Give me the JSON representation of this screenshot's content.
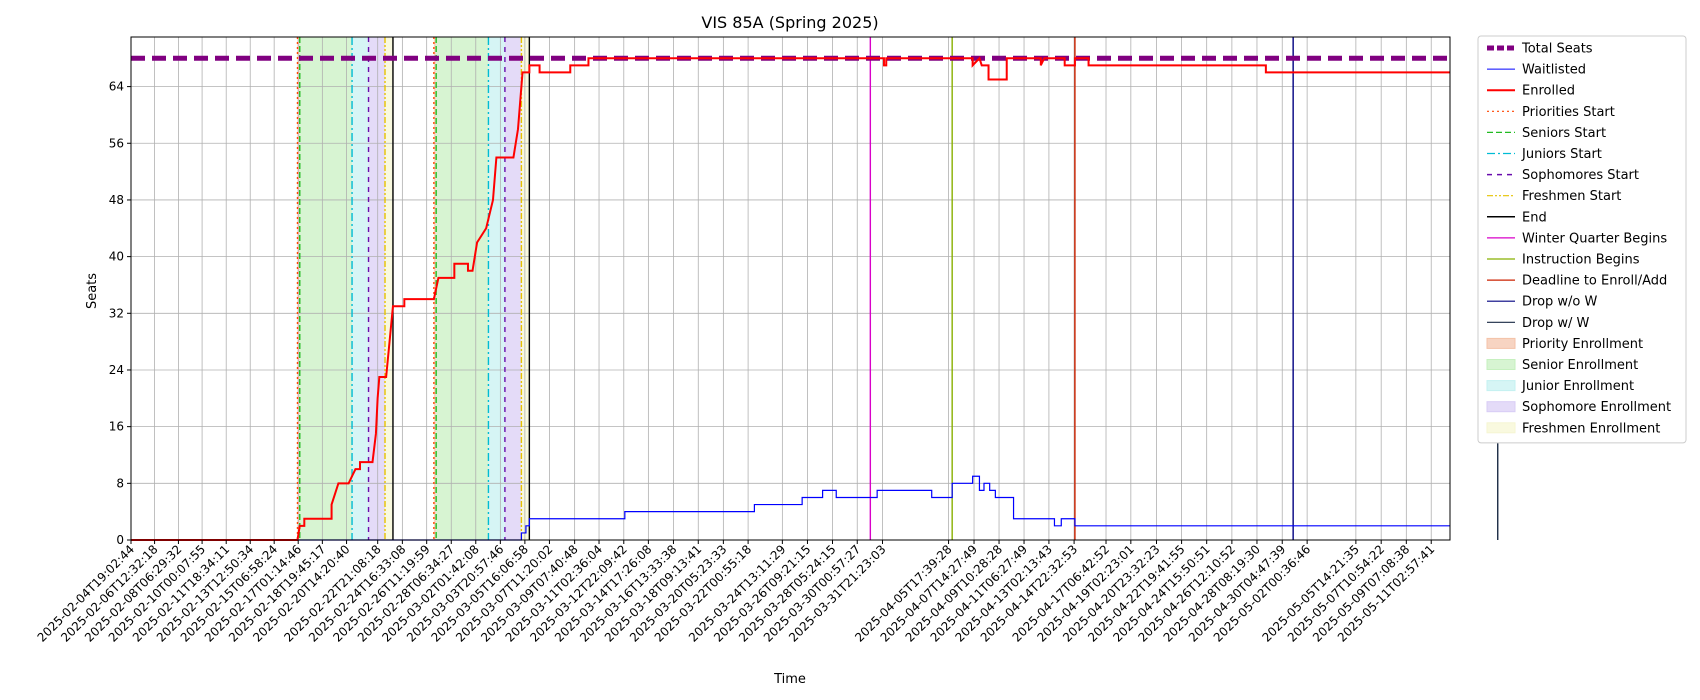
{
  "chart_data": {
    "type": "line",
    "title": "VIS 85A (Spring 2025)",
    "xlabel": "Time",
    "ylabel": "Seats",
    "grid": true,
    "legend_position": "outside-right",
    "x_range": [
      "2025-02-04T19:02:44",
      "2025-05-12T12:00:00"
    ],
    "ylim": [
      0,
      71
    ],
    "y_ticks": [
      0,
      8,
      16,
      24,
      32,
      40,
      48,
      56,
      64
    ],
    "x_ticks": [
      "2025-02-04T19:02:44",
      "2025-02-06T12:32:18",
      "2025-02-08T06:29:32",
      "2025-02-10T00:07:55",
      "2025-02-11T18:34:11",
      "2025-02-13T12:50:34",
      "2025-02-15T06:58:24",
      "2025-02-17T01:14:46",
      "2025-02-18T19:45:17",
      "2025-02-20T14:20:40",
      "2025-02-22T21:08:18",
      "2025-02-24T16:33:08",
      "2025-02-26T11:19:59",
      "2025-02-28T06:34:27",
      "2025-03-02T01:42:08",
      "2025-03-03T20:57:46",
      "2025-03-05T16:06:58",
      "2025-03-07T11:20:02",
      "2025-03-09T07:40:48",
      "2025-03-11T02:36:04",
      "2025-03-12T22:09:42",
      "2025-03-14T17:26:08",
      "2025-03-16T13:33:38",
      "2025-03-18T09:13:41",
      "2025-03-20T05:23:33",
      "2025-03-22T00:55:18",
      "2025-03-24T13:11:29",
      "2025-03-26T09:21:15",
      "2025-03-28T05:24:15",
      "2025-03-30T00:57:27",
      "2025-03-31T21:23:03",
      "2025-04-05T17:39:28",
      "2025-04-07T14:27:49",
      "2025-04-09T10:28:28",
      "2025-04-11T06:27:49",
      "2025-04-13T02:13:43",
      "2025-04-14T22:32:53",
      "2025-04-17T06:42:52",
      "2025-04-19T02:23:01",
      "2025-04-20T23:32:23",
      "2025-04-22T19:41:55",
      "2025-04-24T15:50:51",
      "2025-04-26T12:10:52",
      "2025-04-28T08:19:30",
      "2025-04-30T04:47:39",
      "2025-05-02T00:36:46",
      "2025-05-05T14:21:35",
      "2025-05-07T10:54:22",
      "2025-05-09T07:08:38",
      "2025-05-11T02:57:41"
    ],
    "shaded_regions": [
      {
        "name": "Priority Enrollment",
        "color": "#f4c2a8",
        "spans": [
          [
            "2025-02-17T00:00:00",
            "2025-02-17T04:00:00"
          ],
          [
            "2025-02-27T00:00:00",
            "2025-02-27T04:00:00"
          ]
        ]
      },
      {
        "name": "Senior Enrollment",
        "color": "#c6f0bf",
        "spans": [
          [
            "2025-02-17T04:00:00",
            "2025-02-21T00:00:00"
          ],
          [
            "2025-02-27T04:00:00",
            "2025-03-03T00:00:00"
          ]
        ]
      },
      {
        "name": "Junior Enrollment",
        "color": "#c4f1f1",
        "spans": [
          [
            "2025-02-21T00:00:00",
            "2025-02-22T05:00:00"
          ],
          [
            "2025-03-03T00:00:00",
            "2025-03-04T05:00:00"
          ]
        ]
      },
      {
        "name": "Sophomore Enrollment",
        "color": "#d8ccf5",
        "spans": [
          [
            "2025-02-22T05:00:00",
            "2025-02-23T10:00:00"
          ],
          [
            "2025-03-04T05:00:00",
            "2025-03-05T10:00:00"
          ]
        ]
      },
      {
        "name": "Freshmen Enrollment",
        "color": "#f6f6d2",
        "spans": [
          [
            "2025-02-23T10:00:00",
            "2025-02-24T00:00:00"
          ],
          [
            "2025-03-05T10:00:00",
            "2025-03-06T00:00:00"
          ]
        ]
      }
    ],
    "vertical_markers": [
      {
        "name": "Priorities Start",
        "color": "#ff4500",
        "dash": "2,3",
        "dates": [
          "2025-02-17T00:00:00",
          "2025-02-27T00:00:00"
        ]
      },
      {
        "name": "Seniors Start",
        "color": "#22bb22",
        "dash": "6,3",
        "dates": [
          "2025-02-17T04:00:00",
          "2025-02-27T04:00:00"
        ]
      },
      {
        "name": "Juniors Start",
        "color": "#00bcd4",
        "dash": "8,3,2,3",
        "dates": [
          "2025-02-21T00:00:00",
          "2025-03-03T00:00:00"
        ]
      },
      {
        "name": "Sophomores Start",
        "color": "#6a0dad",
        "dash": "5,5",
        "dates": [
          "2025-02-22T05:00:00",
          "2025-03-04T05:00:00"
        ]
      },
      {
        "name": "Freshmen Start",
        "color": "#e6c200",
        "dash": "6,2,2,2,2,2",
        "dates": [
          "2025-02-23T10:00:00",
          "2025-03-05T10:00:00"
        ]
      },
      {
        "name": "End",
        "color": "#000000",
        "dash": "",
        "dates": [
          "2025-02-24T00:00:00",
          "2025-03-06T00:00:00"
        ]
      },
      {
        "name": "Winter Quarter Begins",
        "color": "#d800c8",
        "dash": "",
        "dates": [
          "2025-03-31T00:00:00"
        ]
      },
      {
        "name": "Instruction Begins",
        "color": "#88b000",
        "dash": "",
        "dates": [
          "2025-04-06T00:00:00"
        ]
      },
      {
        "name": "Deadline to Enroll/Add",
        "color": "#cc2200",
        "dash": "",
        "dates": [
          "2025-04-15T00:00:00"
        ]
      },
      {
        "name": "Drop w/o W",
        "color": "#000080",
        "dash": "",
        "dates": [
          "2025-05-01T00:00:00"
        ]
      },
      {
        "name": "Drop w/ W",
        "color": "#1a2a44",
        "dash": "",
        "dates": [
          "2025-05-16T00:00:00"
        ]
      }
    ],
    "series": [
      {
        "name": "Total Seats",
        "color": "#800080",
        "style": "dashed-thick",
        "type": "hline",
        "value": 68
      },
      {
        "name": "Waitlisted",
        "color": "#0000ff",
        "style": "solid-thin",
        "points": [
          [
            "2025-02-04T19:02:44",
            0
          ],
          [
            "2025-03-05T10:00:00",
            0
          ],
          [
            "2025-03-05T10:00:00",
            1
          ],
          [
            "2025-03-05T18:00:00",
            1
          ],
          [
            "2025-03-05T18:00:00",
            2
          ],
          [
            "2025-03-06T00:00:00",
            2
          ],
          [
            "2025-03-06T00:00:00",
            3
          ],
          [
            "2025-03-13T00:00:00",
            3
          ],
          [
            "2025-03-13T00:00:00",
            4
          ],
          [
            "2025-03-22T12:00:00",
            4
          ],
          [
            "2025-03-22T12:00:00",
            5
          ],
          [
            "2025-03-26T00:00:00",
            5
          ],
          [
            "2025-03-26T00:00:00",
            6
          ],
          [
            "2025-03-27T12:00:00",
            6
          ],
          [
            "2025-03-27T12:00:00",
            7
          ],
          [
            "2025-03-28T12:00:00",
            7
          ],
          [
            "2025-03-28T12:00:00",
            6
          ],
          [
            "2025-03-31T12:00:00",
            6
          ],
          [
            "2025-03-31T12:00:00",
            7
          ],
          [
            "2025-04-04T12:00:00",
            7
          ],
          [
            "2025-04-04T12:00:00",
            6
          ],
          [
            "2025-04-06T00:00:00",
            6
          ],
          [
            "2025-04-06T00:00:00",
            8
          ],
          [
            "2025-04-07T12:00:00",
            8
          ],
          [
            "2025-04-07T12:00:00",
            9
          ],
          [
            "2025-04-08T00:00:00",
            9
          ],
          [
            "2025-04-08T00:00:00",
            7
          ],
          [
            "2025-04-08T08:00:00",
            7
          ],
          [
            "2025-04-08T08:00:00",
            8
          ],
          [
            "2025-04-08T18:00:00",
            8
          ],
          [
            "2025-04-08T18:00:00",
            7
          ],
          [
            "2025-04-09T04:00:00",
            7
          ],
          [
            "2025-04-09T04:00:00",
            6
          ],
          [
            "2025-04-10T12:00:00",
            6
          ],
          [
            "2025-04-10T12:00:00",
            3
          ],
          [
            "2025-04-13T12:00:00",
            3
          ],
          [
            "2025-04-13T12:00:00",
            2
          ],
          [
            "2025-04-14T00:00:00",
            2
          ],
          [
            "2025-04-14T00:00:00",
            3
          ],
          [
            "2025-04-15T00:00:00",
            3
          ],
          [
            "2025-04-15T00:00:00",
            2
          ],
          [
            "2025-05-12T12:00:00",
            2
          ]
        ]
      },
      {
        "name": "Enrolled",
        "color": "#ff0000",
        "style": "solid",
        "points": [
          [
            "2025-02-04T19:02:44",
            0
          ],
          [
            "2025-02-17T00:00:00",
            0
          ],
          [
            "2025-02-17T04:00:00",
            2
          ],
          [
            "2025-02-17T12:00:00",
            2
          ],
          [
            "2025-02-17T12:00:00",
            3
          ],
          [
            "2025-02-19T12:00:00",
            3
          ],
          [
            "2025-02-19T12:00:00",
            5
          ],
          [
            "2025-02-20T00:00:00",
            8
          ],
          [
            "2025-02-20T18:00:00",
            8
          ],
          [
            "2025-02-21T00:00:00",
            9
          ],
          [
            "2025-02-21T06:00:00",
            10
          ],
          [
            "2025-02-21T14:00:00",
            10
          ],
          [
            "2025-02-21T14:00:00",
            11
          ],
          [
            "2025-02-22T12:00:00",
            11
          ],
          [
            "2025-02-22T18:00:00",
            15
          ],
          [
            "2025-02-22T21:00:00",
            20
          ],
          [
            "2025-02-23T00:00:00",
            23
          ],
          [
            "2025-02-23T12:00:00",
            23
          ],
          [
            "2025-02-23T18:00:00",
            28
          ],
          [
            "2025-02-24T00:00:00",
            33
          ],
          [
            "2025-02-24T20:00:00",
            33
          ],
          [
            "2025-02-24T20:00:00",
            34
          ],
          [
            "2025-02-27T00:00:00",
            34
          ],
          [
            "2025-02-27T08:00:00",
            37
          ],
          [
            "2025-02-28T12:00:00",
            37
          ],
          [
            "2025-02-28T12:00:00",
            39
          ],
          [
            "2025-03-01T12:00:00",
            39
          ],
          [
            "2025-03-01T12:00:00",
            38
          ],
          [
            "2025-03-01T20:00:00",
            38
          ],
          [
            "2025-03-02T04:00:00",
            42
          ],
          [
            "2025-03-02T20:00:00",
            44
          ],
          [
            "2025-03-03T08:00:00",
            48
          ],
          [
            "2025-03-03T14:00:00",
            54
          ],
          [
            "2025-03-04T20:00:00",
            54
          ],
          [
            "2025-03-05T04:00:00",
            58
          ],
          [
            "2025-03-05T08:00:00",
            62
          ],
          [
            "2025-03-05T12:00:00",
            66
          ],
          [
            "2025-03-06T00:00:00",
            66
          ],
          [
            "2025-03-06T00:00:00",
            67
          ],
          [
            "2025-03-06T18:00:00",
            67
          ],
          [
            "2025-03-06T18:00:00",
            66
          ],
          [
            "2025-03-09T00:00:00",
            66
          ],
          [
            "2025-03-09T00:00:00",
            67
          ],
          [
            "2025-03-10T08:00:00",
            67
          ],
          [
            "2025-03-10T08:00:00",
            68
          ],
          [
            "2025-04-01T00:00:00",
            68
          ],
          [
            "2025-04-01T00:00:00",
            67
          ],
          [
            "2025-04-01T04:00:00",
            67
          ],
          [
            "2025-04-01T04:00:00",
            68
          ],
          [
            "2025-04-07T12:00:00",
            68
          ],
          [
            "2025-04-07T12:00:00",
            67
          ],
          [
            "2025-04-08T00:00:00",
            68
          ],
          [
            "2025-04-08T04:00:00",
            67
          ],
          [
            "2025-04-08T16:00:00",
            67
          ],
          [
            "2025-04-08T16:00:00",
            65
          ],
          [
            "2025-04-10T00:00:00",
            65
          ],
          [
            "2025-04-10T00:00:00",
            68
          ],
          [
            "2025-04-12T12:00:00",
            68
          ],
          [
            "2025-04-12T12:00:00",
            67
          ],
          [
            "2025-04-12T18:00:00",
            68
          ],
          [
            "2025-04-14T06:00:00",
            68
          ],
          [
            "2025-04-14T06:00:00",
            67
          ],
          [
            "2025-04-15T00:00:00",
            67
          ],
          [
            "2025-04-15T00:00:00",
            68
          ],
          [
            "2025-04-16T00:00:00",
            68
          ],
          [
            "2025-04-16T00:00:00",
            67
          ],
          [
            "2025-04-29T00:00:00",
            67
          ],
          [
            "2025-04-29T00:00:00",
            66
          ],
          [
            "2025-05-12T12:00:00",
            66
          ]
        ]
      }
    ],
    "legend": [
      {
        "label": "Total Seats",
        "kind": "line",
        "color": "#800080",
        "dash": "7,3",
        "width": 5
      },
      {
        "label": "Waitlisted",
        "kind": "line",
        "color": "#0000ff",
        "dash": "",
        "width": 1
      },
      {
        "label": "Enrolled",
        "kind": "line",
        "color": "#ff0000",
        "dash": "",
        "width": 2
      },
      {
        "label": "Priorities Start",
        "kind": "line",
        "color": "#ff4500",
        "dash": "2,3",
        "width": 1.2
      },
      {
        "label": "Seniors Start",
        "kind": "line",
        "color": "#22bb22",
        "dash": "6,3",
        "width": 1.2
      },
      {
        "label": "Juniors Start",
        "kind": "line",
        "color": "#00bcd4",
        "dash": "8,3,2,3",
        "width": 1.2
      },
      {
        "label": "Sophomores Start",
        "kind": "line",
        "color": "#6a0dad",
        "dash": "5,5",
        "width": 1.5
      },
      {
        "label": "Freshmen Start",
        "kind": "line",
        "color": "#e6c200",
        "dash": "6,2,2,2,2,2",
        "width": 1.2
      },
      {
        "label": "End",
        "kind": "line",
        "color": "#000000",
        "dash": "",
        "width": 1.5
      },
      {
        "label": "Winter Quarter Begins",
        "kind": "line",
        "color": "#d800c8",
        "dash": "",
        "width": 1.2
      },
      {
        "label": "Instruction Begins",
        "kind": "line",
        "color": "#88b000",
        "dash": "",
        "width": 1.2
      },
      {
        "label": "Deadline to Enroll/Add",
        "kind": "line",
        "color": "#cc2200",
        "dash": "",
        "width": 1.2
      },
      {
        "label": "Drop w/o W",
        "kind": "line",
        "color": "#000080",
        "dash": "",
        "width": 1.2
      },
      {
        "label": "Drop w/ W",
        "kind": "line",
        "color": "#1a2a44",
        "dash": "",
        "width": 1.2
      },
      {
        "label": "Priority Enrollment",
        "kind": "patch",
        "color": "#f4c2a8"
      },
      {
        "label": "Senior Enrollment",
        "kind": "patch",
        "color": "#c6f0bf"
      },
      {
        "label": "Junior Enrollment",
        "kind": "patch",
        "color": "#c4f1f1"
      },
      {
        "label": "Sophomore Enrollment",
        "kind": "patch",
        "color": "#d8ccf5"
      },
      {
        "label": "Freshmen Enrollment",
        "kind": "patch",
        "color": "#f6f6d2"
      }
    ]
  }
}
